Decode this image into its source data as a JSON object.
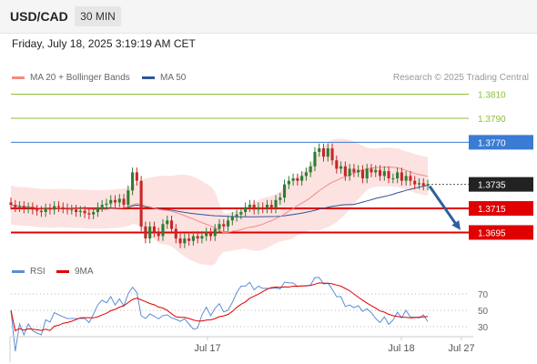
{
  "header": {
    "symbol": "USD/CAD",
    "interval": "30 MIN"
  },
  "timestamp": "Friday, July 18, 2025 3:19:19 AM CET",
  "copyright": "Research © 2025 Trading Central",
  "legend_price": [
    {
      "label": "MA 20 + Bollinger Bands",
      "color": "#f28b82"
    },
    {
      "label": "MA 50",
      "color": "#2f5597"
    }
  ],
  "legend_rsi": [
    {
      "label": "RSI",
      "color": "#5b8ed6"
    },
    {
      "label": "9MA",
      "color": "#e00000"
    }
  ],
  "colors": {
    "up_candle": "#2e7d32",
    "down_candle": "#c62828",
    "bollinger_fill": "#fde2e2",
    "support": "#e00000",
    "resistance": "#3a7bd5",
    "target": "#8bbf3c",
    "arrow": "#2f5f9e"
  },
  "chart_data": [
    {
      "type": "candlestick",
      "title": "USD/CAD 30 MIN",
      "x_ticks": [
        "Jul 17",
        "Jul 18",
        "Jul 27"
      ],
      "ylim": [
        1.3665,
        1.3825
      ],
      "grid": false,
      "levels": [
        {
          "label": "1.3810",
          "value": 1.381,
          "kind": "target"
        },
        {
          "label": "1.3790",
          "value": 1.379,
          "kind": "target"
        },
        {
          "label": "1.3770",
          "value": 1.377,
          "kind": "resistance"
        },
        {
          "label": "1.3735",
          "value": 1.3735,
          "kind": "last"
        },
        {
          "label": "1.3715",
          "value": 1.3715,
          "kind": "support"
        },
        {
          "label": "1.3695",
          "value": 1.3695,
          "kind": "support"
        }
      ],
      "series": [
        {
          "name": "USD/CAD",
          "close": [
            1.3718,
            1.3716,
            1.3717,
            1.3715,
            1.3716,
            1.3714,
            1.3713,
            1.3712,
            1.3715,
            1.3714,
            1.3717,
            1.3716,
            1.3715,
            1.3714,
            1.3714,
            1.3712,
            1.3713,
            1.3711,
            1.371,
            1.3712,
            1.3716,
            1.3718,
            1.3719,
            1.3722,
            1.372,
            1.3723,
            1.3718,
            1.373,
            1.3745,
            1.3738,
            1.37,
            1.369,
            1.37,
            1.3695,
            1.3692,
            1.3702,
            1.3705,
            1.3698,
            1.369,
            1.3686,
            1.369,
            1.3688,
            1.3692,
            1.369,
            1.3692,
            1.3695,
            1.3692,
            1.3698,
            1.3702,
            1.37,
            1.3705,
            1.3708,
            1.371,
            1.3712,
            1.3716,
            1.3718,
            1.3714,
            1.3716,
            1.3715,
            1.3718,
            1.3715,
            1.3722,
            1.3724,
            1.3735,
            1.3738,
            1.374,
            1.3738,
            1.3742,
            1.3745,
            1.375,
            1.3762,
            1.3765,
            1.3758,
            1.3765,
            1.3755,
            1.3748,
            1.375,
            1.3742,
            1.3748,
            1.3745,
            1.3747,
            1.374,
            1.3748,
            1.3745,
            1.3747,
            1.3742,
            1.3746,
            1.374,
            1.374,
            1.3745,
            1.3738,
            1.3742,
            1.3738,
            1.3735,
            1.3736,
            1.3734,
            1.3735
          ]
        },
        {
          "name": "MA 20",
          "values": []
        },
        {
          "name": "MA 50",
          "values": []
        }
      ]
    },
    {
      "type": "line",
      "title": "RSI",
      "x_ticks": [
        "Jul 17",
        "Jul 18",
        "Jul 27"
      ],
      "y_ticks": [
        70,
        50,
        30
      ],
      "ylim": [
        20,
        80
      ],
      "grid": true,
      "series": [
        {
          "name": "RSI",
          "values": []
        },
        {
          "name": "9MA",
          "values": []
        }
      ]
    }
  ]
}
